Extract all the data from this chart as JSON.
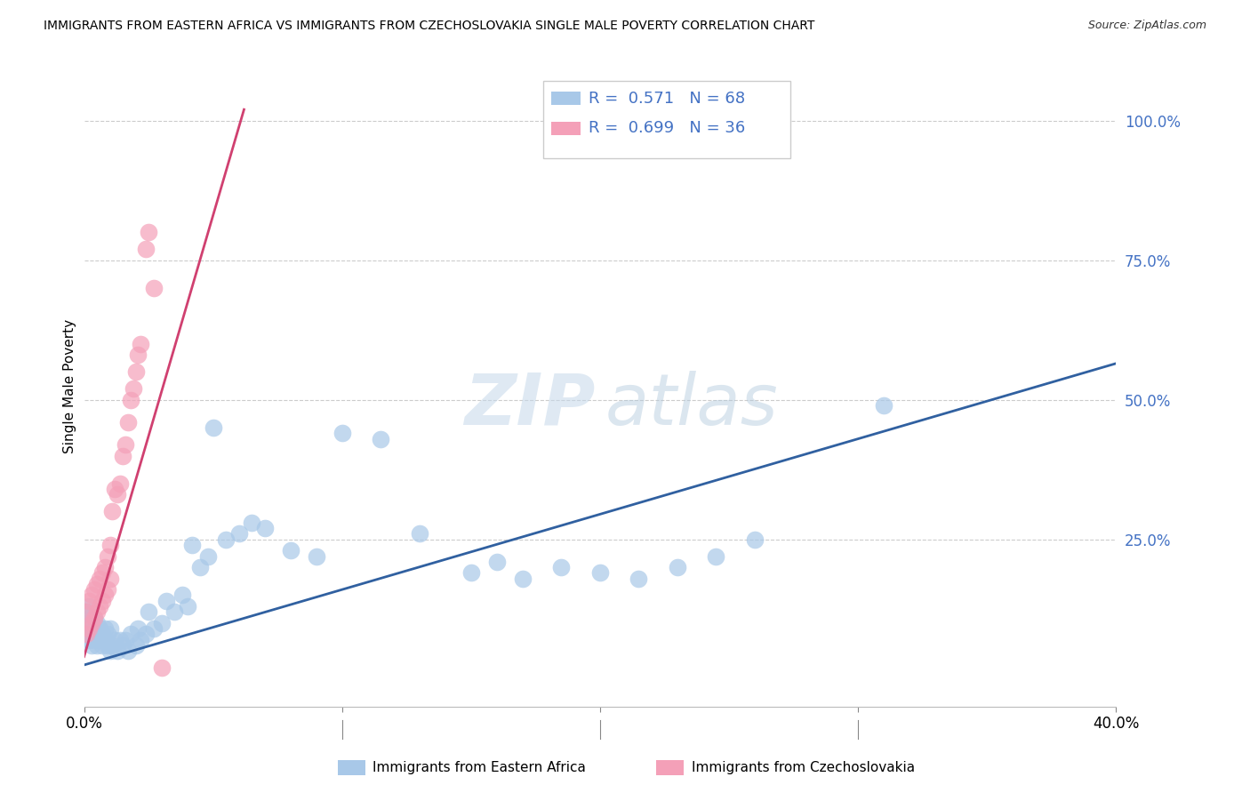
{
  "title": "IMMIGRANTS FROM EASTERN AFRICA VS IMMIGRANTS FROM CZECHOSLOVAKIA SINGLE MALE POVERTY CORRELATION CHART",
  "source": "Source: ZipAtlas.com",
  "ylabel": "Single Male Poverty",
  "ytick_labels": [
    "100.0%",
    "75.0%",
    "50.0%",
    "25.0%"
  ],
  "ytick_values": [
    1.0,
    0.75,
    0.5,
    0.25
  ],
  "xlim": [
    0.0,
    0.4
  ],
  "ylim": [
    -0.05,
    1.1
  ],
  "blue_R": 0.571,
  "blue_N": 68,
  "pink_R": 0.699,
  "pink_N": 36,
  "blue_color": "#a8c8e8",
  "pink_color": "#f4a0b8",
  "blue_line_color": "#3060a0",
  "pink_line_color": "#d04070",
  "legend_label_blue": "Immigrants from Eastern Africa",
  "legend_label_pink": "Immigrants from Czechoslovakia",
  "blue_line_x0": 0.0,
  "blue_line_y0": 0.025,
  "blue_line_x1": 0.4,
  "blue_line_y1": 0.565,
  "pink_line_x0": 0.0,
  "pink_line_y0": 0.04,
  "pink_line_x1": 0.062,
  "pink_line_y1": 1.02,
  "blue_x": [
    0.001,
    0.001,
    0.001,
    0.002,
    0.002,
    0.002,
    0.002,
    0.003,
    0.003,
    0.003,
    0.004,
    0.004,
    0.004,
    0.005,
    0.005,
    0.005,
    0.006,
    0.006,
    0.007,
    0.007,
    0.008,
    0.008,
    0.009,
    0.009,
    0.01,
    0.01,
    0.011,
    0.012,
    0.013,
    0.014,
    0.015,
    0.016,
    0.017,
    0.018,
    0.02,
    0.021,
    0.022,
    0.024,
    0.025,
    0.027,
    0.03,
    0.032,
    0.035,
    0.038,
    0.04,
    0.042,
    0.045,
    0.048,
    0.05,
    0.055,
    0.06,
    0.065,
    0.07,
    0.08,
    0.09,
    0.1,
    0.115,
    0.13,
    0.15,
    0.16,
    0.17,
    0.185,
    0.2,
    0.215,
    0.23,
    0.245,
    0.26,
    0.31
  ],
  "blue_y": [
    0.08,
    0.1,
    0.12,
    0.07,
    0.09,
    0.11,
    0.13,
    0.06,
    0.08,
    0.1,
    0.07,
    0.09,
    0.11,
    0.06,
    0.08,
    0.1,
    0.07,
    0.09,
    0.06,
    0.08,
    0.07,
    0.09,
    0.06,
    0.08,
    0.05,
    0.09,
    0.06,
    0.07,
    0.05,
    0.07,
    0.06,
    0.07,
    0.05,
    0.08,
    0.06,
    0.09,
    0.07,
    0.08,
    0.12,
    0.09,
    0.1,
    0.14,
    0.12,
    0.15,
    0.13,
    0.24,
    0.2,
    0.22,
    0.45,
    0.25,
    0.26,
    0.28,
    0.27,
    0.23,
    0.22,
    0.44,
    0.43,
    0.26,
    0.19,
    0.21,
    0.18,
    0.2,
    0.19,
    0.18,
    0.2,
    0.22,
    0.25,
    0.49
  ],
  "pink_x": [
    0.001,
    0.001,
    0.002,
    0.002,
    0.003,
    0.003,
    0.004,
    0.004,
    0.005,
    0.005,
    0.006,
    0.006,
    0.007,
    0.007,
    0.008,
    0.008,
    0.009,
    0.009,
    0.01,
    0.01,
    0.011,
    0.012,
    0.013,
    0.014,
    0.015,
    0.016,
    0.017,
    0.018,
    0.019,
    0.02,
    0.021,
    0.022,
    0.024,
    0.025,
    0.027,
    0.03
  ],
  "pink_y": [
    0.08,
    0.12,
    0.09,
    0.14,
    0.1,
    0.15,
    0.11,
    0.16,
    0.12,
    0.17,
    0.13,
    0.18,
    0.14,
    0.19,
    0.15,
    0.2,
    0.16,
    0.22,
    0.18,
    0.24,
    0.3,
    0.34,
    0.33,
    0.35,
    0.4,
    0.42,
    0.46,
    0.5,
    0.52,
    0.55,
    0.58,
    0.6,
    0.77,
    0.8,
    0.7,
    0.02
  ]
}
